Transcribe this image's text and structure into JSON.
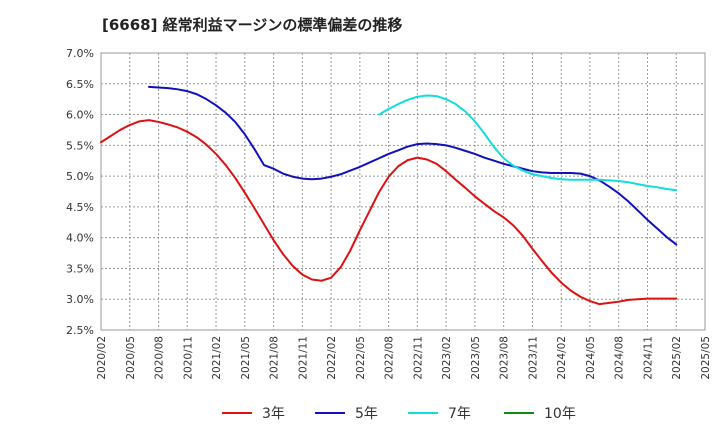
{
  "chart_data": {
    "type": "line",
    "title": "[6668]  経常利益マージンの標準偏差の推移",
    "xlabel": "",
    "ylabel": "",
    "ylim": [
      0.025,
      0.07
    ],
    "y_tick_labels": [
      "7.0%",
      "6.5%",
      "6.0%",
      "5.5%",
      "5.0%",
      "4.5%",
      "4.0%",
      "3.5%",
      "3.0%",
      "2.5%"
    ],
    "x_tick_labels": [
      "2020/02",
      "2020/05",
      "2020/08",
      "2020/11",
      "2021/02",
      "2021/05",
      "2021/08",
      "2021/11",
      "2022/02",
      "2022/05",
      "2022/08",
      "2022/11",
      "2023/02",
      "2023/05",
      "2023/08",
      "2023/11",
      "2024/02",
      "2024/05",
      "2024/08",
      "2024/11",
      "2025/02",
      "2025/05"
    ],
    "grid": true,
    "legend_position": "bottom",
    "series": [
      {
        "name": "3年",
        "color": "#dd1111",
        "points": [
          [
            "2020/02",
            0.0555
          ],
          [
            "2020/03",
            0.0565
          ],
          [
            "2020/04",
            0.0575
          ],
          [
            "2020/05",
            0.0583
          ],
          [
            "2020/06",
            0.0589
          ],
          [
            "2020/07",
            0.0591
          ],
          [
            "2020/08",
            0.0588
          ],
          [
            "2020/09",
            0.0584
          ],
          [
            "2020/10",
            0.0579
          ],
          [
            "2020/11",
            0.0572
          ],
          [
            "2020/12",
            0.0563
          ],
          [
            "2021/01",
            0.0551
          ],
          [
            "2021/02",
            0.0536
          ],
          [
            "2021/03",
            0.0518
          ],
          [
            "2021/04",
            0.0497
          ],
          [
            "2021/05",
            0.0473
          ],
          [
            "2021/06",
            0.0448
          ],
          [
            "2021/07",
            0.0422
          ],
          [
            "2021/08",
            0.0396
          ],
          [
            "2021/09",
            0.0373
          ],
          [
            "2021/10",
            0.0354
          ],
          [
            "2021/11",
            0.034
          ],
          [
            "2021/12",
            0.0332
          ],
          [
            "2022/01",
            0.033
          ],
          [
            "2022/02",
            0.0335
          ],
          [
            "2022/03",
            0.0352
          ],
          [
            "2022/04",
            0.0379
          ],
          [
            "2022/05",
            0.0412
          ],
          [
            "2022/06",
            0.0443
          ],
          [
            "2022/07",
            0.0474
          ],
          [
            "2022/08",
            0.0499
          ],
          [
            "2022/09",
            0.0516
          ],
          [
            "2022/10",
            0.0526
          ],
          [
            "2022/11",
            0.053
          ],
          [
            "2022/12",
            0.0527
          ],
          [
            "2023/01",
            0.052
          ],
          [
            "2023/02",
            0.0508
          ],
          [
            "2023/03",
            0.0494
          ],
          [
            "2023/04",
            0.0481
          ],
          [
            "2023/05",
            0.0467
          ],
          [
            "2023/06",
            0.0455
          ],
          [
            "2023/07",
            0.0443
          ],
          [
            "2023/08",
            0.0433
          ],
          [
            "2023/09",
            0.042
          ],
          [
            "2023/10",
            0.0403
          ],
          [
            "2023/11",
            0.0382
          ],
          [
            "2023/12",
            0.0362
          ],
          [
            "2024/01",
            0.0343
          ],
          [
            "2024/02",
            0.0327
          ],
          [
            "2024/03",
            0.0314
          ],
          [
            "2024/04",
            0.0304
          ],
          [
            "2024/05",
            0.0297
          ],
          [
            "2024/06",
            0.0292
          ],
          [
            "2024/07",
            0.0294
          ],
          [
            "2024/08",
            0.0296
          ],
          [
            "2024/09",
            0.0299
          ],
          [
            "2024/10",
            0.03
          ],
          [
            "2024/11",
            0.0301
          ],
          [
            "2024/12",
            0.0301
          ],
          [
            "2025/01",
            0.0301
          ],
          [
            "2025/02",
            0.0301
          ]
        ]
      },
      {
        "name": "5年",
        "color": "#1111bb",
        "points": [
          [
            "2020/07",
            0.0645
          ],
          [
            "2020/08",
            0.0644
          ],
          [
            "2020/09",
            0.0643
          ],
          [
            "2020/10",
            0.0641
          ],
          [
            "2020/11",
            0.0638
          ],
          [
            "2020/12",
            0.0633
          ],
          [
            "2021/01",
            0.0625
          ],
          [
            "2021/02",
            0.0615
          ],
          [
            "2021/03",
            0.0603
          ],
          [
            "2021/04",
            0.0588
          ],
          [
            "2021/05",
            0.0568
          ],
          [
            "2021/06",
            0.0544
          ],
          [
            "2021/07",
            0.0518
          ],
          [
            "2021/08",
            0.0512
          ],
          [
            "2021/09",
            0.0504
          ],
          [
            "2021/10",
            0.0499
          ],
          [
            "2021/11",
            0.0496
          ],
          [
            "2021/12",
            0.0495
          ],
          [
            "2022/01",
            0.0496
          ],
          [
            "2022/02",
            0.0499
          ],
          [
            "2022/03",
            0.0503
          ],
          [
            "2022/04",
            0.0509
          ],
          [
            "2022/05",
            0.0515
          ],
          [
            "2022/06",
            0.0522
          ],
          [
            "2022/07",
            0.0529
          ],
          [
            "2022/08",
            0.0536
          ],
          [
            "2022/09",
            0.0542
          ],
          [
            "2022/10",
            0.0548
          ],
          [
            "2022/11",
            0.0552
          ],
          [
            "2022/12",
            0.0553
          ],
          [
            "2023/01",
            0.0552
          ],
          [
            "2023/02",
            0.055
          ],
          [
            "2023/03",
            0.0546
          ],
          [
            "2023/04",
            0.0541
          ],
          [
            "2023/05",
            0.0536
          ],
          [
            "2023/06",
            0.053
          ],
          [
            "2023/07",
            0.0525
          ],
          [
            "2023/08",
            0.052
          ],
          [
            "2023/09",
            0.0516
          ],
          [
            "2023/10",
            0.0512
          ],
          [
            "2023/11",
            0.0508
          ],
          [
            "2023/12",
            0.0506
          ],
          [
            "2024/01",
            0.0505
          ],
          [
            "2024/02",
            0.0505
          ],
          [
            "2024/03",
            0.0505
          ],
          [
            "2024/04",
            0.0504
          ],
          [
            "2024/05",
            0.05
          ],
          [
            "2024/06",
            0.0493
          ],
          [
            "2024/07",
            0.0483
          ],
          [
            "2024/08",
            0.0472
          ],
          [
            "2024/09",
            0.0459
          ],
          [
            "2024/10",
            0.0444
          ],
          [
            "2024/11",
            0.0429
          ],
          [
            "2024/12",
            0.0415
          ],
          [
            "2025/01",
            0.0401
          ],
          [
            "2025/02",
            0.0389
          ]
        ]
      },
      {
        "name": "7年",
        "color": "#11dddd",
        "points": [
          [
            "2022/07",
            0.06
          ],
          [
            "2022/08",
            0.0609
          ],
          [
            "2022/09",
            0.0617
          ],
          [
            "2022/10",
            0.0624
          ],
          [
            "2022/11",
            0.0629
          ],
          [
            "2022/12",
            0.0631
          ],
          [
            "2023/01",
            0.063
          ],
          [
            "2023/02",
            0.0625
          ],
          [
            "2023/03",
            0.0617
          ],
          [
            "2023/04",
            0.0605
          ],
          [
            "2023/05",
            0.0589
          ],
          [
            "2023/06",
            0.0569
          ],
          [
            "2023/07",
            0.0547
          ],
          [
            "2023/08",
            0.0529
          ],
          [
            "2023/09",
            0.0517
          ],
          [
            "2023/10",
            0.0509
          ],
          [
            "2023/11",
            0.0503
          ],
          [
            "2023/12",
            0.05
          ],
          [
            "2024/01",
            0.0497
          ],
          [
            "2024/02",
            0.0495
          ],
          [
            "2024/03",
            0.0494
          ],
          [
            "2024/04",
            0.0494
          ],
          [
            "2024/05",
            0.0494
          ],
          [
            "2024/06",
            0.0494
          ],
          [
            "2024/07",
            0.0493
          ],
          [
            "2024/08",
            0.0492
          ],
          [
            "2024/09",
            0.049
          ],
          [
            "2024/10",
            0.0487
          ],
          [
            "2024/11",
            0.0484
          ],
          [
            "2024/12",
            0.0482
          ],
          [
            "2025/01",
            0.0479
          ],
          [
            "2025/02",
            0.0477
          ]
        ]
      },
      {
        "name": "10年",
        "color": "#118811",
        "points": []
      }
    ]
  }
}
